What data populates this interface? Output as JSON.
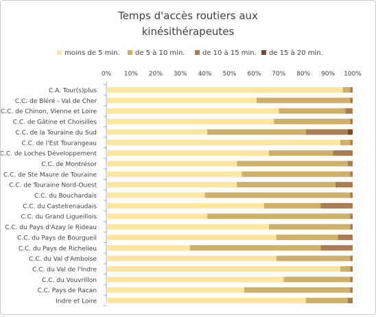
{
  "chart_data": {
    "type": "bar",
    "orientation": "horizontal",
    "stacked": "percent",
    "title": "Temps d'accès routiers aux kinésithérapeutes",
    "title_lines": [
      "Temps d'accès routiers aux",
      "kinésithérapeutes"
    ],
    "legend_position": "top",
    "grid": false,
    "xlim": [
      0,
      100
    ],
    "x_ticks": [
      "0%",
      "10%",
      "20%",
      "30%",
      "40%",
      "50%",
      "60%",
      "70%",
      "80%",
      "90%",
      "100%"
    ],
    "categories": [
      "C.A. Tour(s)plus",
      "C.C. de Bléré - Val de Cher",
      "C.C. de Chinon, Vienne et Loire",
      "C.C. de Gâtine et Choisilles",
      "C.C. de la Touraine du Sud",
      "C.C. de l'Est Tourangeau",
      "C.C. de Loches Développement",
      "C.C. de Montrésor",
      "C.C. de Ste Maure de Touraine",
      "C.C. de Touraine Nord-Ouest",
      "C.C. du Bouchardais",
      "C.C. du Castelrenaudais",
      "C.C. du Grand Ligueillois",
      "C.C. du Pays d'Azay le Rideau",
      "C.C. du Pays de Bourgueil",
      "C.C. du Pays de Richelieu",
      "C.C. du Val d'Amboise",
      "C.C. du Val de l'Indre",
      "C.C. du Vouvrillon",
      "C.C. Pays de Racan",
      "Indre et Loire"
    ],
    "series": [
      {
        "name": "moins de 5 min.",
        "color": "#fde7a0",
        "values": [
          96,
          61,
          70,
          68,
          41,
          95,
          66,
          53,
          55,
          53,
          40,
          64,
          41,
          66,
          69,
          34,
          69,
          95,
          72,
          56,
          81
        ]
      },
      {
        "name": "de 5 à 10 min.",
        "color": "#cfb06a",
        "values": [
          3,
          38,
          27,
          31,
          40,
          4,
          26,
          45,
          44,
          40,
          59,
          23,
          58,
          33,
          25,
          53,
          30,
          4,
          27,
          43,
          17
        ]
      },
      {
        "name": "de 10 à 15 min.",
        "color": "#a97c52",
        "values": [
          1,
          1,
          3,
          1,
          17,
          1,
          8,
          2,
          1,
          7,
          1,
          13,
          1,
          1,
          6,
          13,
          1,
          1,
          1,
          1,
          2
        ]
      },
      {
        "name": "de 15 à 20 min.",
        "color": "#7b4a26",
        "values": [
          0,
          0,
          0,
          0,
          2,
          0,
          0,
          0,
          0,
          0,
          0,
          0,
          0,
          0,
          0,
          0,
          0,
          0,
          0,
          0,
          0
        ]
      }
    ]
  }
}
